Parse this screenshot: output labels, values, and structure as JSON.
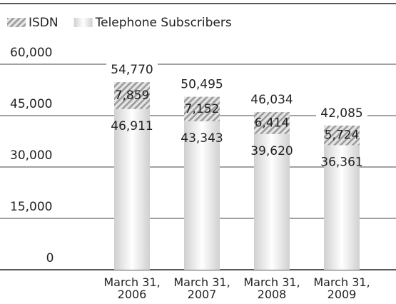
{
  "chart_data": {
    "type": "stacked_bar",
    "categories": [
      "March 31, 2006",
      "March 31, 2007",
      "March 31, 2008",
      "March 31, 2009"
    ],
    "series": [
      {
        "name": "Telephone Subscribers",
        "color": "#d0d0d0",
        "values": [
          46911,
          43343,
          39620,
          36361
        ],
        "value_labels": [
          "46,911",
          "43,343",
          "39,620",
          "36,361"
        ]
      },
      {
        "name": "ISDN",
        "color": "#9a9a9a",
        "values": [
          7859,
          7152,
          6414,
          5724
        ],
        "value_labels": [
          "7,859",
          "7,152",
          "6,414",
          "5,724"
        ]
      }
    ],
    "totals": [
      54770,
      50495,
      46034,
      42085
    ],
    "total_labels": [
      "54,770",
      "50,495",
      "46,034",
      "42,085"
    ],
    "ylim": [
      0,
      60000
    ],
    "yticks": [
      0,
      {
        "value": 15000,
        "label": "15,000"
      },
      {
        "value": 30000,
        "label": "30,000"
      },
      {
        "value": 45000,
        "label": "45,000"
      },
      {
        "value": 60000,
        "label": "60,000"
      }
    ],
    "grid": true,
    "legend": "top-left"
  }
}
